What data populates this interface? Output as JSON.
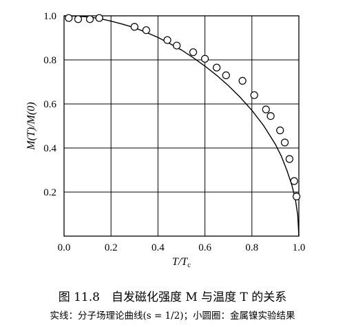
{
  "chart_data": {
    "type": "line",
    "xlabel": "T/T",
    "xlabel_sub": "c",
    "ylabel": "M(T)/M(0)",
    "xlim": [
      0.0,
      1.0
    ],
    "ylim": [
      0.0,
      1.0
    ],
    "grid": true,
    "x_ticks": [
      "0.0",
      "0.2",
      "0.4",
      "0.6",
      "0.8",
      "1.0"
    ],
    "y_ticks": [
      "0.2",
      "0.4",
      "0.6",
      "0.8",
      "1.0"
    ],
    "series": [
      {
        "style": "line",
        "x": [
          0.0,
          0.05,
          0.1,
          0.15,
          0.2,
          0.25,
          0.3,
          0.35,
          0.4,
          0.45,
          0.5,
          0.55,
          0.6,
          0.65,
          0.7,
          0.75,
          0.8,
          0.85,
          0.9,
          0.925,
          0.95,
          0.97,
          0.985,
          0.995,
          1.0
        ],
        "y": [
          1.0,
          0.999,
          0.995,
          0.988,
          0.976,
          0.962,
          0.946,
          0.925,
          0.902,
          0.874,
          0.845,
          0.81,
          0.772,
          0.73,
          0.683,
          0.63,
          0.571,
          0.502,
          0.417,
          0.364,
          0.296,
          0.232,
          0.168,
          0.097,
          0.0
        ]
      },
      {
        "style": "markers",
        "x": [
          0.02,
          0.06,
          0.11,
          0.15,
          0.3,
          0.35,
          0.44,
          0.48,
          0.55,
          0.6,
          0.65,
          0.69,
          0.76,
          0.81,
          0.86,
          0.88,
          0.92,
          0.94,
          0.96,
          0.98,
          0.99
        ],
        "y": [
          0.99,
          0.985,
          0.985,
          0.99,
          0.95,
          0.935,
          0.89,
          0.865,
          0.835,
          0.805,
          0.765,
          0.73,
          0.705,
          0.64,
          0.575,
          0.545,
          0.48,
          0.425,
          0.35,
          0.25,
          0.18
        ]
      }
    ]
  },
  "caption": {
    "title": "图 11.8　自发磁化强度 M 与温度 T 的关系",
    "subtitle": "实线：分子场理论曲线(s = 1/2)；小圆圈：金属镍实验结果"
  }
}
